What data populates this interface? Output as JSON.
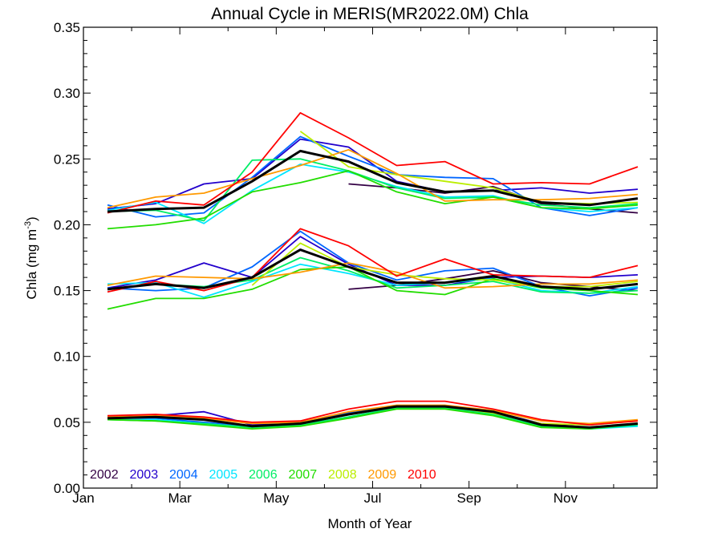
{
  "chart_data": {
    "type": "line",
    "title": "Annual Cycle in MERIS(MR2022.0M) Chla",
    "xlabel": "Month of Year",
    "ylabel": {
      "main": "Chla (mg m",
      "sup": "-3",
      "close": ")"
    },
    "xlim": [
      1,
      12.9
    ],
    "ylim": [
      0,
      0.35
    ],
    "x_ticks": [
      {
        "value": 1,
        "label": "Jan"
      },
      {
        "value": 3,
        "label": "Mar"
      },
      {
        "value": 5,
        "label": "May"
      },
      {
        "value": 7,
        "label": "Jul"
      },
      {
        "value": 9,
        "label": "Sep"
      },
      {
        "value": 11,
        "label": "Nov"
      }
    ],
    "y_ticks": [
      {
        "value": 0.0,
        "label": "0.00"
      },
      {
        "value": 0.05,
        "label": "0.05"
      },
      {
        "value": 0.1,
        "label": "0.10"
      },
      {
        "value": 0.15,
        "label": "0.15"
      },
      {
        "value": 0.2,
        "label": "0.20"
      },
      {
        "value": 0.25,
        "label": "0.25"
      },
      {
        "value": 0.3,
        "label": "0.30"
      },
      {
        "value": 0.35,
        "label": "0.35"
      }
    ],
    "x": [
      1.5,
      2.5,
      3.5,
      4.5,
      5.5,
      6.5,
      7.5,
      8.5,
      9.5,
      10.5,
      11.5,
      12.5
    ],
    "groups": [
      "upper",
      "middle",
      "lower"
    ],
    "series": [
      {
        "name": "2002",
        "color": "#330044",
        "upper": [
          null,
          null,
          null,
          null,
          null,
          0.231,
          0.228,
          0.224,
          0.229,
          0.216,
          0.212,
          0.209
        ],
        "middle": [
          null,
          null,
          null,
          null,
          null,
          0.151,
          0.154,
          0.159,
          0.165,
          0.156,
          0.153,
          0.15
        ],
        "lower": [
          null,
          null,
          null,
          null,
          null,
          0.053,
          0.061,
          0.061,
          0.057,
          0.048,
          0.046,
          0.049
        ]
      },
      {
        "name": "2003",
        "color": "#2200cc",
        "upper": [
          0.212,
          0.216,
          0.231,
          0.235,
          0.265,
          0.259,
          0.233,
          0.225,
          0.226,
          0.228,
          0.224,
          0.227
        ],
        "middle": [
          0.152,
          0.158,
          0.171,
          0.16,
          0.191,
          0.17,
          0.154,
          0.154,
          0.16,
          0.161,
          0.16,
          0.162
        ],
        "lower": [
          0.054,
          0.055,
          0.058,
          0.048,
          0.05,
          0.057,
          0.062,
          0.062,
          0.058,
          0.049,
          0.046,
          0.049
        ]
      },
      {
        "name": "2004",
        "color": "#0066ff",
        "upper": [
          0.215,
          0.206,
          0.209,
          0.236,
          0.267,
          0.252,
          0.238,
          0.236,
          0.235,
          0.213,
          0.207,
          0.213
        ],
        "middle": [
          0.152,
          0.15,
          0.152,
          0.168,
          0.195,
          0.171,
          0.158,
          0.165,
          0.167,
          0.153,
          0.146,
          0.152
        ],
        "lower": [
          0.053,
          0.053,
          0.05,
          0.047,
          0.05,
          0.057,
          0.062,
          0.062,
          0.058,
          0.048,
          0.046,
          0.048
        ]
      },
      {
        "name": "2005",
        "color": "#00e5ff",
        "upper": [
          0.211,
          0.217,
          0.201,
          0.226,
          0.246,
          0.24,
          0.229,
          0.221,
          0.222,
          0.213,
          0.21,
          0.213
        ],
        "middle": [
          0.155,
          0.156,
          0.145,
          0.157,
          0.17,
          0.163,
          0.154,
          0.156,
          0.159,
          0.15,
          0.148,
          0.153
        ],
        "lower": [
          0.052,
          0.052,
          0.049,
          0.046,
          0.048,
          0.054,
          0.061,
          0.061,
          0.056,
          0.047,
          0.045,
          0.047
        ]
      },
      {
        "name": "2006",
        "color": "#00ee66",
        "upper": [
          0.21,
          0.211,
          0.203,
          0.249,
          0.25,
          0.241,
          0.228,
          0.22,
          0.221,
          0.215,
          0.213,
          0.216
        ],
        "middle": [
          0.151,
          0.155,
          0.153,
          0.158,
          0.175,
          0.165,
          0.152,
          0.154,
          0.157,
          0.149,
          0.148,
          0.15
        ],
        "lower": [
          0.052,
          0.051,
          0.049,
          0.046,
          0.048,
          0.054,
          0.061,
          0.061,
          0.056,
          0.047,
          0.045,
          0.048
        ]
      },
      {
        "name": "2007",
        "color": "#22dd00",
        "upper": [
          0.197,
          0.2,
          0.205,
          0.225,
          0.232,
          0.241,
          0.225,
          0.216,
          0.221,
          0.213,
          0.212,
          0.215
        ],
        "middle": [
          0.136,
          0.144,
          0.144,
          0.151,
          0.166,
          0.168,
          0.15,
          0.147,
          0.159,
          0.152,
          0.15,
          0.147
        ],
        "lower": [
          0.052,
          0.051,
          0.048,
          0.045,
          0.047,
          0.053,
          0.06,
          0.06,
          0.055,
          0.046,
          0.045,
          0.049
        ]
      },
      {
        "name": "2008",
        "color": "#bbee00",
        "upper": [
          null,
          null,
          null,
          null,
          0.271,
          0.244,
          0.238,
          0.233,
          0.228,
          0.217,
          0.216,
          0.217
        ],
        "middle": [
          null,
          null,
          null,
          0.154,
          0.186,
          0.168,
          0.162,
          0.159,
          0.158,
          0.153,
          0.153,
          0.157
        ],
        "lower": [
          null,
          null,
          null,
          0.047,
          0.049,
          0.056,
          0.062,
          0.062,
          0.057,
          0.049,
          0.048,
          0.051
        ]
      },
      {
        "name": "2009",
        "color": "#ff9900",
        "upper": [
          0.213,
          0.221,
          0.224,
          0.235,
          0.245,
          0.257,
          0.239,
          0.218,
          0.219,
          0.219,
          0.22,
          0.223
        ],
        "middle": [
          0.154,
          0.161,
          0.16,
          0.159,
          0.164,
          0.171,
          0.164,
          0.152,
          0.153,
          0.155,
          0.155,
          0.158
        ],
        "lower": [
          0.054,
          0.055,
          0.053,
          0.049,
          0.05,
          0.058,
          0.063,
          0.063,
          0.059,
          0.051,
          0.049,
          0.052
        ]
      },
      {
        "name": "2010",
        "color": "#ff0000",
        "upper": [
          0.209,
          0.218,
          0.215,
          0.24,
          0.285,
          0.266,
          0.245,
          0.248,
          0.231,
          0.232,
          0.231,
          0.244
        ],
        "middle": [
          0.149,
          0.157,
          0.15,
          0.16,
          0.197,
          0.184,
          0.161,
          0.174,
          0.162,
          0.161,
          0.16,
          0.169
        ],
        "lower": [
          0.055,
          0.056,
          0.054,
          0.05,
          0.051,
          0.06,
          0.066,
          0.066,
          0.06,
          0.052,
          0.048,
          0.051
        ]
      },
      {
        "name": "",
        "color": "#000000",
        "thick": true,
        "upper": [
          0.21,
          0.212,
          0.213,
          0.233,
          0.256,
          0.248,
          0.232,
          0.225,
          0.226,
          0.217,
          0.215,
          0.22
        ],
        "middle": [
          0.151,
          0.155,
          0.152,
          0.16,
          0.181,
          0.168,
          0.156,
          0.156,
          0.161,
          0.153,
          0.151,
          0.155
        ],
        "lower": [
          0.053,
          0.054,
          0.052,
          0.047,
          0.049,
          0.056,
          0.062,
          0.062,
          0.058,
          0.048,
          0.046,
          0.049
        ]
      }
    ],
    "grid": false,
    "legend": "bottom-left"
  }
}
